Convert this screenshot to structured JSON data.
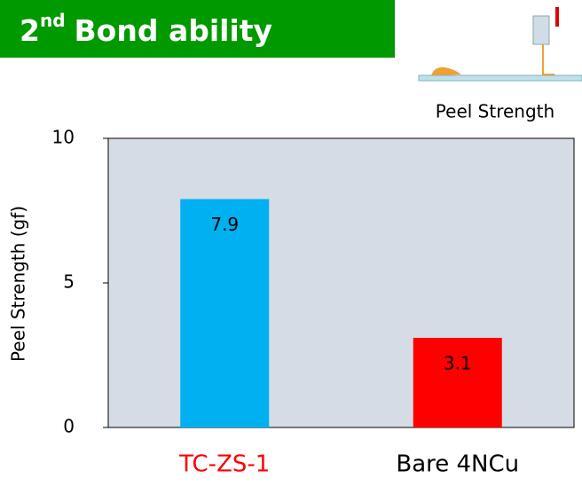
{
  "chart_data": {
    "type": "bar",
    "title_number": "2",
    "title_superscript": "nd",
    "title_text": "Bond ability",
    "annotation": "Peel Strength",
    "ylabel": "Peel Strength (gf)",
    "categories": [
      "TC-ZS-1",
      "Bare 4NCu"
    ],
    "category_colors": [
      "#ff0000",
      "#000000"
    ],
    "values": [
      7.9,
      3.1
    ],
    "colors": [
      "#00b0f0",
      "#ff0000"
    ],
    "ylim": [
      0,
      10
    ],
    "yticks": [
      0,
      5,
      10
    ],
    "plot_background": "#d6dce5"
  }
}
